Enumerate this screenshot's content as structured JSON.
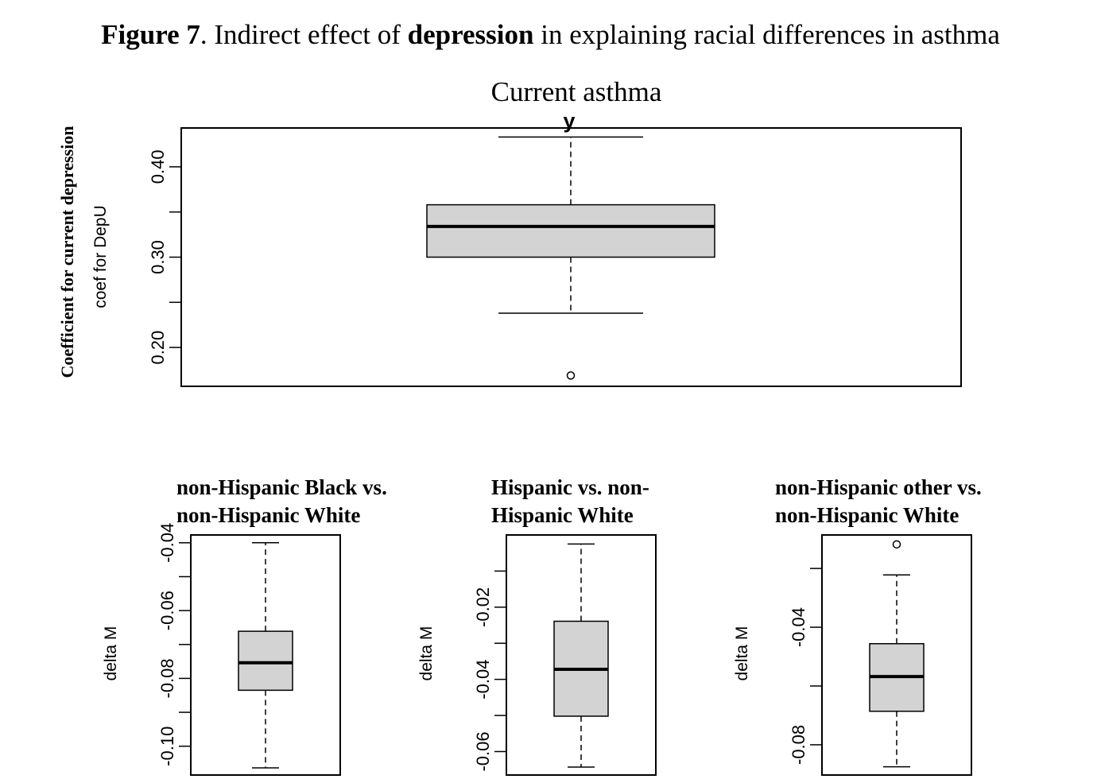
{
  "figure": {
    "label": "Figure 7",
    "text_1": ". Indirect effect of ",
    "bold_word": "depression",
    "text_2": " in explaining racial differences in asthma"
  },
  "top_panel": {
    "section_title": "Current asthma",
    "plot_title": "y",
    "outer_ylabel": "Coefficient for current depression",
    "ylabel": "coef for DepU"
  },
  "bottom_panels": [
    {
      "title_line1": "non-Hispanic Black vs.",
      "title_line2": "non-Hispanic White",
      "ylabel": "delta M"
    },
    {
      "title_line1": "Hispanic vs. non-",
      "title_line2": "Hispanic White",
      "ylabel": "delta M"
    },
    {
      "title_line1": "non-Hispanic other vs.",
      "title_line2": "non-Hispanic White",
      "ylabel": "delta M"
    }
  ],
  "chart_data": [
    {
      "type": "box",
      "title": "y",
      "ylabel": "coef for DepU",
      "ylim": [
        0.157,
        0.443
      ],
      "yticks": [
        0.2,
        0.25,
        0.3,
        0.35,
        0.4
      ],
      "ytick_labels": [
        "0.20",
        "",
        "0.30",
        "",
        "0.40"
      ],
      "box": {
        "whisker_low": 0.238,
        "q1": 0.3,
        "median": 0.334,
        "q3": 0.358,
        "whisker_high": 0.433
      },
      "outliers": [
        0.169
      ]
    },
    {
      "type": "box",
      "ylabel": "delta M",
      "ylim": [
        -0.1085,
        -0.0377
      ],
      "yticks": [
        -0.1,
        -0.09,
        -0.08,
        -0.07,
        -0.06,
        -0.05,
        -0.04
      ],
      "ytick_labels": [
        "-0.10",
        "",
        "-0.08",
        "",
        "-0.06",
        "",
        "-0.04"
      ],
      "box": {
        "whisker_low": -0.1064,
        "q1": -0.0835,
        "median": -0.0754,
        "q3": -0.0661,
        "whisker_high": -0.04
      },
      "outliers": []
    },
    {
      "type": "box",
      "ylabel": "delta M",
      "ylim": [
        -0.0665,
        0.0
      ],
      "yticks": [
        -0.06,
        -0.05,
        -0.04,
        -0.03,
        -0.02,
        -0.01
      ],
      "ytick_labels": [
        "-0.06",
        "",
        "-0.04",
        "",
        "-0.02",
        ""
      ],
      "box": {
        "whisker_low": -0.0643,
        "q1": -0.0502,
        "median": -0.0372,
        "q3": -0.0239,
        "whisker_high": -0.0025
      },
      "outliers": []
    },
    {
      "type": "box",
      "ylabel": "delta M",
      "ylim": [
        -0.0903,
        -0.0086
      ],
      "yticks": [
        -0.08,
        -0.06,
        -0.04,
        -0.02
      ],
      "ytick_labels": [
        "-0.08",
        "",
        "-0.04",
        ""
      ],
      "box": {
        "whisker_low": -0.0875,
        "q1": -0.0686,
        "median": -0.0568,
        "q3": -0.0456,
        "whisker_high": -0.0222
      },
      "outliers": [
        -0.0118
      ]
    }
  ]
}
